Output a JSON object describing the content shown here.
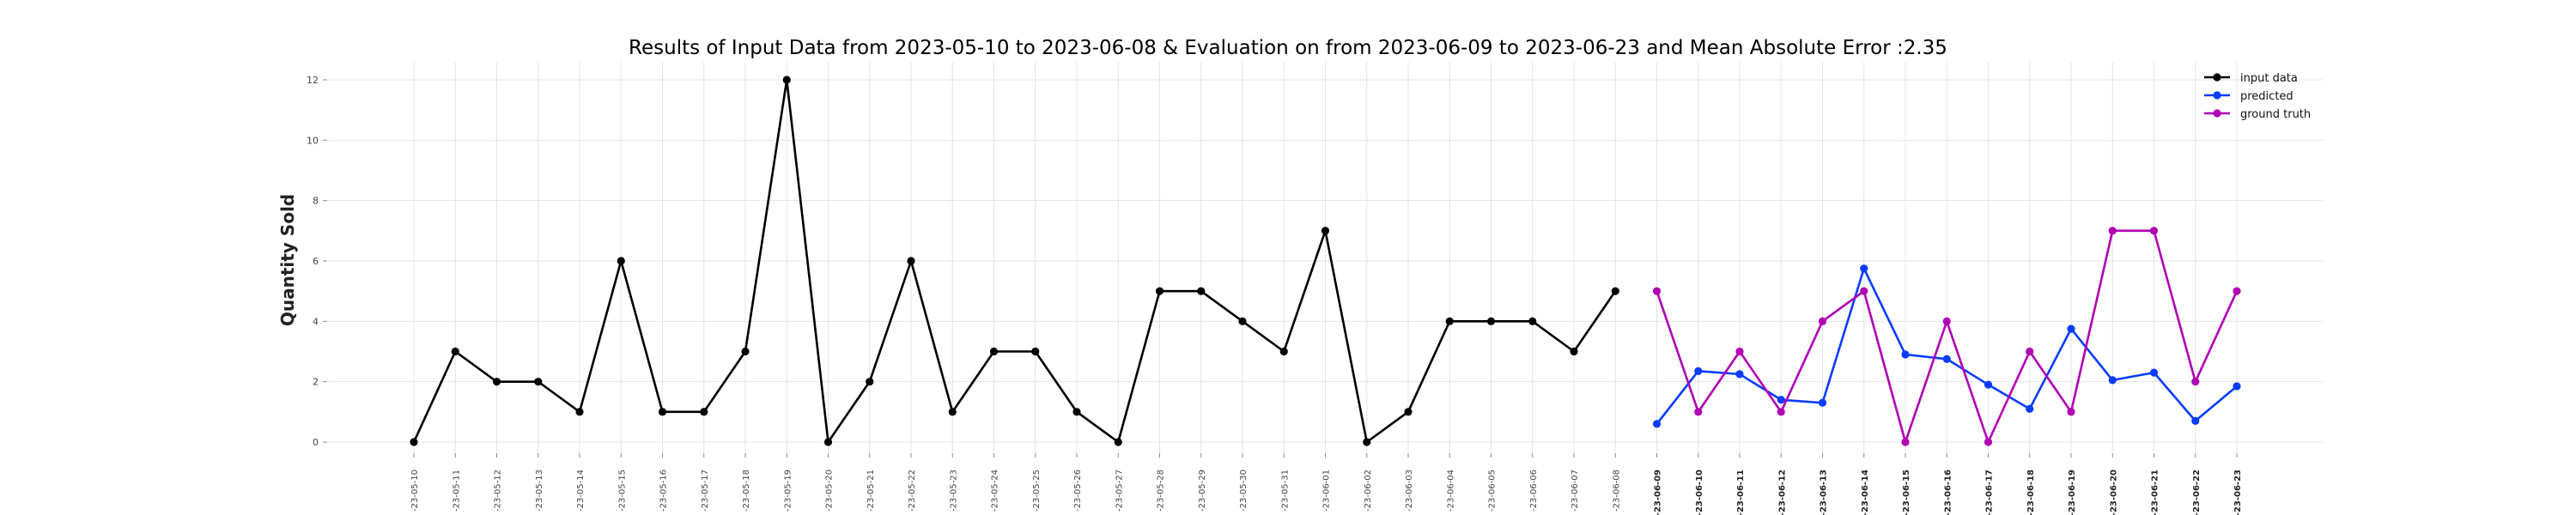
{
  "chart_data": {
    "type": "line",
    "title": "Results of Input Data from 2023-05-10 to 2023-06-08 & Evaluation on from 2023-06-09 to 2023-06-23 and Mean Absolute Error  :2.35",
    "xlabel": "",
    "ylabel": "Quantity Sold",
    "ylim": [
      0,
      12
    ],
    "yticks": [
      0,
      2,
      4,
      6,
      8,
      10,
      12
    ],
    "grid": true,
    "legend_position": "top-right",
    "x": [
      "2023-05-10",
      "2023-05-11",
      "2023-05-12",
      "2023-05-13",
      "2023-05-14",
      "2023-05-15",
      "2023-05-16",
      "2023-05-17",
      "2023-05-18",
      "2023-05-19",
      "2023-05-20",
      "2023-05-21",
      "2023-05-22",
      "2023-05-23",
      "2023-05-24",
      "2023-05-25",
      "2023-05-26",
      "2023-05-27",
      "2023-05-28",
      "2023-05-29",
      "2023-05-30",
      "2023-05-31",
      "2023-06-01",
      "2023-06-02",
      "2023-06-03",
      "2023-06-04",
      "2023-06-05",
      "2023-06-06",
      "2023-06-07",
      "2023-06-08",
      "2023-06-09",
      "2023-06-10",
      "2023-06-11",
      "2023-06-12",
      "2023-06-13",
      "2023-06-14",
      "2023-06-15",
      "2023-06-16",
      "2023-06-17",
      "2023-06-18",
      "2023-06-19",
      "2023-06-20",
      "2023-06-21",
      "2023-06-22",
      "2023-06-23"
    ],
    "xtick_labels": [
      "-23-05-10",
      "-23-05-11",
      "-23-05-12",
      "-23-05-13",
      "-23-05-14",
      "-23-05-15",
      "-23-05-16",
      "-23-05-17",
      "-23-05-18",
      "-23-05-19",
      "-23-05-20",
      "-23-05-21",
      "-23-05-22",
      "-23-05-23",
      "-23-05-24",
      "-23-05-25",
      "-23-05-26",
      "-23-05-27",
      "-23-05-28",
      "-23-05-29",
      "-23-05-30",
      "-23-05-31",
      "-23-06-01",
      "-23-06-02",
      "-23-06-03",
      "-23-06-04",
      "-23-06-05",
      "-23-06-06",
      "-23-06-07",
      "-23-06-08",
      "-23-06-09",
      "-23-06-10",
      "-23-06-11",
      "-23-06-12",
      "-23-06-13",
      "-23-06-14",
      "-23-06-15",
      "-23-06-16",
      "-23-06-17",
      "-23-06-18",
      "-23-06-19",
      "-23-06-20",
      "-23-06-21",
      "-23-06-22",
      "-23-06-23"
    ],
    "series": [
      {
        "name": "input data",
        "color": "#000000",
        "x": [
          "2023-05-10",
          "2023-05-11",
          "2023-05-12",
          "2023-05-13",
          "2023-05-14",
          "2023-05-15",
          "2023-05-16",
          "2023-05-17",
          "2023-05-18",
          "2023-05-19",
          "2023-05-20",
          "2023-05-21",
          "2023-05-22",
          "2023-05-23",
          "2023-05-24",
          "2023-05-25",
          "2023-05-26",
          "2023-05-27",
          "2023-05-28",
          "2023-05-29",
          "2023-05-30",
          "2023-05-31",
          "2023-06-01",
          "2023-06-02",
          "2023-06-03",
          "2023-06-04",
          "2023-06-05",
          "2023-06-06",
          "2023-06-07",
          "2023-06-08"
        ],
        "values": [
          0,
          3,
          2,
          2,
          1,
          6,
          1,
          1,
          3,
          12,
          0,
          2,
          6,
          1,
          3,
          3,
          1,
          0,
          5,
          5,
          4,
          3,
          7,
          0,
          1,
          4,
          4,
          4,
          3,
          5
        ]
      },
      {
        "name": "predicted",
        "color": "#0a3cff",
        "x": [
          "2023-06-09",
          "2023-06-10",
          "2023-06-11",
          "2023-06-12",
          "2023-06-13",
          "2023-06-14",
          "2023-06-15",
          "2023-06-16",
          "2023-06-17",
          "2023-06-18",
          "2023-06-19",
          "2023-06-20",
          "2023-06-21",
          "2023-06-22",
          "2023-06-23"
        ],
        "values": [
          0.6,
          2.35,
          2.25,
          1.4,
          1.3,
          5.75,
          2.9,
          2.75,
          1.9,
          1.1,
          3.75,
          2.05,
          2.3,
          0.7,
          1.85
        ]
      },
      {
        "name": "ground truth",
        "color": "#b000b5",
        "x": [
          "2023-06-09",
          "2023-06-10",
          "2023-06-11",
          "2023-06-12",
          "2023-06-13",
          "2023-06-14",
          "2023-06-15",
          "2023-06-16",
          "2023-06-17",
          "2023-06-18",
          "2023-06-19",
          "2023-06-20",
          "2023-06-21",
          "2023-06-22",
          "2023-06-23"
        ],
        "values": [
          5,
          1,
          3,
          1,
          4,
          5,
          0,
          4,
          0,
          3,
          1,
          7,
          7,
          2,
          5
        ]
      }
    ]
  }
}
